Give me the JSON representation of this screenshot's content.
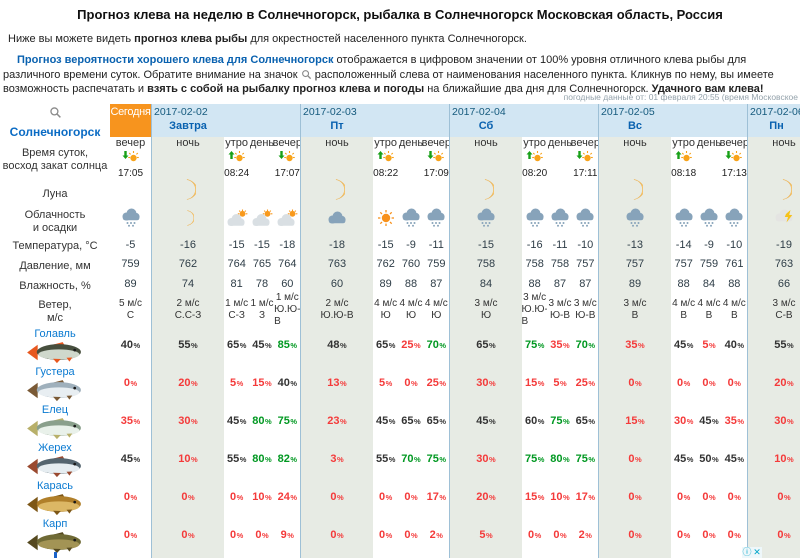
{
  "header": {
    "title": "Прогноз клева на неделю в Солнечногорск, рыбалка в Солнечногорск Московская область, Россия",
    "intro": {
      "pre": "Ниже вы можете видеть ",
      "bold": "прогноз клева рыбы",
      "post": " для окрестностей населенного пункта Солнечногорск."
    },
    "description": {
      "link": "Прогноз вероятности хорошего клева для Солнечногорск",
      "after_link": " отображается в цифровом значении от 100% уровня отличного клева рыбы для различного времени суток. Обратите внимание на значок ",
      "after_icon": " расположенный слева от наименования населенного пункта. Кликнув по нему, вы имеете возможность распечатать и ",
      "bold1": "взять с собой на рыбалку прогноз клева и погоды",
      "middle": " на ближайшие два дня для Солнечногорск. ",
      "bold2": "Удачного вам клева!"
    },
    "meta": "погодные данные от: 01 февраля 20:55 (время Московское"
  },
  "table": {
    "city": "Солнечногорск",
    "labels": {
      "time": [
        "Время суток,",
        "восход закат солнца"
      ],
      "moon": "Луна",
      "clouds": [
        "Облачность",
        "и осадки"
      ],
      "temperature": "Температура, °C",
      "pressure": "Давление, мм",
      "humidity": "Влажность, %",
      "wind": [
        "Ветер,",
        "м/с"
      ]
    },
    "value_colors": {
      "low": "#f43a3a",
      "mid": "#333333",
      "high": "#009821"
    },
    "thresholds": {
      "high": 70,
      "mid": 40
    },
    "accent": {
      "today_bg": "#f7941e",
      "night_bg": "#e7ebe4",
      "header_bg": "#d2e6f3",
      "separator": "#9ec0d6",
      "day_link": "#0a62b0",
      "date_text": "#155a7d",
      "fish_link": "#0a7ad1"
    },
    "days": [
      {
        "label": "Сегодня",
        "date": "",
        "today": true,
        "cols": [
          {
            "time": "вечер",
            "sun": "set",
            "sun_time": "17:05",
            "moon": false,
            "sky": "cloud-snow",
            "temp": "-5",
            "pressure": "759",
            "humidity": "89",
            "wind": [
              "5 м/с",
              "С"
            ]
          }
        ]
      },
      {
        "label": "Завтра",
        "date": "2017-02-02",
        "cols": [
          {
            "time": "ночь",
            "night": true,
            "moon": true,
            "sky": "moon",
            "temp": "-16",
            "pressure": "762",
            "humidity": "74",
            "wind": [
              "2 м/с",
              "С.С-З"
            ]
          },
          {
            "time": "утро",
            "sun": "rise",
            "sun_time": "08:24",
            "sky": "sun-cloud",
            "temp": "-15",
            "pressure": "764",
            "humidity": "81",
            "wind": [
              "1 м/с",
              "С-З"
            ]
          },
          {
            "time": "день",
            "sky": "sun-cloud",
            "temp": "-15",
            "pressure": "765",
            "humidity": "78",
            "wind": [
              "1 м/с",
              "З"
            ]
          },
          {
            "time": "вечер",
            "sun": "set",
            "sun_time": "17:07",
            "sky": "sun-cloud",
            "temp": "-18",
            "pressure": "764",
            "humidity": "60",
            "wind": [
              "1 м/с",
              "Ю.Ю-В"
            ]
          }
        ]
      },
      {
        "label": "Пт",
        "date": "2017-02-03",
        "cols": [
          {
            "time": "ночь",
            "night": true,
            "moon": true,
            "sky": "cloud",
            "temp": "-18",
            "pressure": "763",
            "humidity": "60",
            "wind": [
              "2 м/с",
              "Ю.Ю-В"
            ]
          },
          {
            "time": "утро",
            "sun": "rise",
            "sun_time": "08:22",
            "sky": "sun",
            "temp": "-15",
            "pressure": "762",
            "humidity": "89",
            "wind": [
              "4 м/с",
              "Ю"
            ]
          },
          {
            "time": "день",
            "sky": "cloud-snow",
            "temp": "-9",
            "pressure": "760",
            "humidity": "88",
            "wind": [
              "4 м/с",
              "Ю"
            ]
          },
          {
            "time": "вечер",
            "sun": "set",
            "sun_time": "17:09",
            "sky": "cloud-snow",
            "temp": "-11",
            "pressure": "759",
            "humidity": "87",
            "wind": [
              "4 м/с",
              "Ю"
            ]
          }
        ]
      },
      {
        "label": "Сб",
        "date": "2017-02-04",
        "cols": [
          {
            "time": "ночь",
            "night": true,
            "moon": true,
            "sky": "cloud-snow",
            "temp": "-15",
            "pressure": "758",
            "humidity": "84",
            "wind": [
              "3 м/с",
              "Ю"
            ]
          },
          {
            "time": "утро",
            "sun": "rise",
            "sun_time": "08:20",
            "sky": "cloud-snow",
            "temp": "-16",
            "pressure": "758",
            "humidity": "88",
            "wind": [
              "3 м/с",
              "Ю.Ю-В"
            ]
          },
          {
            "time": "день",
            "sky": "cloud-snow",
            "temp": "-11",
            "pressure": "758",
            "humidity": "87",
            "wind": [
              "3 м/с",
              "Ю-В"
            ]
          },
          {
            "time": "вечер",
            "sun": "set",
            "sun_time": "17:11",
            "sky": "cloud-snow",
            "temp": "-10",
            "pressure": "757",
            "humidity": "87",
            "wind": [
              "3 м/с",
              "Ю-В"
            ]
          }
        ]
      },
      {
        "label": "Вс",
        "date": "2017-02-05",
        "cols": [
          {
            "time": "ночь",
            "night": true,
            "moon": true,
            "sky": "cloud-snow",
            "temp": "-13",
            "pressure": "757",
            "humidity": "89",
            "wind": [
              "3 м/с",
              "В"
            ]
          },
          {
            "time": "утро",
            "sun": "rise",
            "sun_time": "08:18",
            "sky": "cloud-snow",
            "temp": "-14",
            "pressure": "757",
            "humidity": "88",
            "wind": [
              "4 м/с",
              "В"
            ]
          },
          {
            "time": "день",
            "sky": "cloud-snow",
            "temp": "-9",
            "pressure": "759",
            "humidity": "84",
            "wind": [
              "4 м/с",
              "В"
            ]
          },
          {
            "time": "вечер",
            "sun": "set",
            "sun_time": "17:13",
            "sky": "cloud-snow",
            "temp": "-10",
            "pressure": "761",
            "humidity": "88",
            "wind": [
              "4 м/с",
              "В"
            ]
          }
        ]
      },
      {
        "label": "Пн",
        "date": "2017-02-06",
        "partial": true,
        "cols": [
          {
            "time": "ночь",
            "night": true,
            "moon": true,
            "sky": "cloud-lightning",
            "temp": "-19",
            "pressure": "763",
            "humidity": "66",
            "wind": [
              "3 м/с",
              "С-В"
            ]
          }
        ]
      }
    ],
    "fish": [
      {
        "name": "Голавль",
        "colors": {
          "body": "#474f3e",
          "belly": "#cfd8cc",
          "fin": "#e8581f"
        },
        "values": [
          40,
          55,
          65,
          45,
          85,
          48,
          65,
          25,
          70,
          65,
          75,
          35,
          70,
          35,
          45,
          5,
          40,
          55
        ]
      },
      {
        "name": "Густера",
        "colors": {
          "body": "#9fb0bc",
          "belly": "#e8eef2",
          "fin": "#7a5a36"
        },
        "values": [
          0,
          20,
          5,
          15,
          40,
          13,
          5,
          0,
          25,
          30,
          15,
          5,
          25,
          0,
          0,
          0,
          0,
          20
        ]
      },
      {
        "name": "Елец",
        "colors": {
          "body": "#8aa08c",
          "belly": "#e9f1ea",
          "fin": "#b8b06a"
        },
        "values": [
          35,
          30,
          45,
          80,
          75,
          23,
          45,
          65,
          65,
          45,
          60,
          75,
          65,
          15,
          30,
          45,
          35,
          30
        ]
      },
      {
        "name": "Жерех",
        "colors": {
          "body": "#55656f",
          "belly": "#e6edf1",
          "fin": "#9a4a30"
        },
        "values": [
          45,
          10,
          55,
          80,
          82,
          3,
          55,
          70,
          75,
          30,
          75,
          80,
          75,
          0,
          45,
          50,
          45,
          10
        ]
      },
      {
        "name": "Карась",
        "colors": {
          "body": "#b07f2a",
          "belly": "#dcb765",
          "fin": "#7d5717"
        },
        "values": [
          0,
          0,
          0,
          10,
          24,
          0,
          0,
          0,
          17,
          20,
          15,
          10,
          17,
          0,
          0,
          0,
          0,
          0
        ]
      },
      {
        "name": "Карп",
        "colors": {
          "body": "#6f6a35",
          "belly": "#a39455",
          "fin": "#55491f"
        },
        "values": [
          0,
          0,
          0,
          0,
          9,
          0,
          0,
          0,
          2,
          5,
          0,
          0,
          2,
          0,
          0,
          0,
          0,
          0
        ]
      }
    ]
  },
  "ad": {
    "info": "ⓘ",
    "close": "✕"
  }
}
